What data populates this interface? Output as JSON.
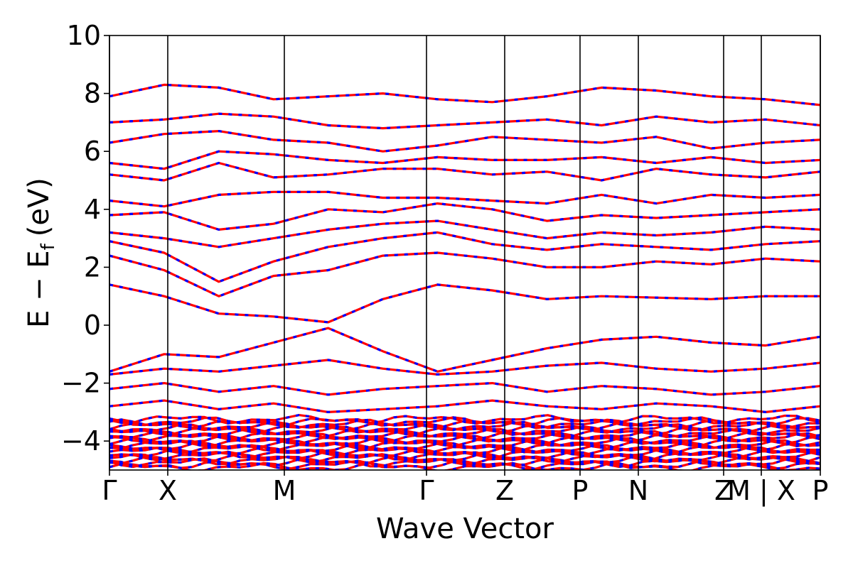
{
  "chart_data": {
    "type": "line",
    "title": "",
    "xlabel": "Wave Vector",
    "ylabel": "E − E",
    "ylabel_subscript": "f",
    "ylabel_unit": "(eV)",
    "ylim": [
      -5,
      10
    ],
    "yticks": [
      -4,
      -2,
      0,
      2,
      4,
      6,
      8,
      10
    ],
    "ytick_labels": [
      "−4",
      "−2",
      "0",
      "2",
      "4",
      "6",
      "8",
      "10"
    ],
    "x_range": [
      0,
      1
    ],
    "high_symmetry_points": [
      {
        "label": "Γ",
        "x": 0.0
      },
      {
        "label": "X",
        "x": 0.082
      },
      {
        "label": "M",
        "x": 0.246
      },
      {
        "label": "Γ",
        "x": 0.446
      },
      {
        "label": "Z",
        "x": 0.556
      },
      {
        "label": "P",
        "x": 0.662
      },
      {
        "label": "N",
        "x": 0.744
      },
      {
        "label": "Z",
        "x": 0.864
      },
      {
        "label": "M | X",
        "x": 0.917
      },
      {
        "label": "P",
        "x": 1.0
      }
    ],
    "grid": false,
    "legend": "none",
    "series": [
      {
        "style": "solid",
        "color": "#ff0000",
        "bands": "all"
      },
      {
        "style": "dashed",
        "color": "#0000ff",
        "bands": "all"
      }
    ],
    "bands": [
      {
        "y": [
          1.4,
          1.0,
          0.4,
          0.3,
          0.1,
          0.9,
          1.4,
          1.2,
          0.9,
          1.0,
          0.95,
          0.9,
          1.0,
          1.0
        ]
      },
      {
        "y": [
          2.4,
          1.9,
          1.0,
          1.7,
          1.9,
          2.4,
          2.5,
          2.3,
          2.0,
          2.0,
          2.2,
          2.1,
          2.3,
          2.2
        ]
      },
      {
        "y": [
          2.9,
          2.5,
          1.5,
          2.2,
          2.7,
          3.0,
          3.2,
          2.8,
          2.6,
          2.8,
          2.7,
          2.6,
          2.8,
          2.9
        ]
      },
      {
        "y": [
          3.2,
          3.0,
          2.7,
          3.0,
          3.3,
          3.5,
          3.6,
          3.3,
          3.0,
          3.2,
          3.1,
          3.2,
          3.4,
          3.3
        ]
      },
      {
        "y": [
          3.8,
          3.9,
          3.3,
          3.5,
          4.0,
          3.9,
          4.2,
          4.0,
          3.6,
          3.8,
          3.7,
          3.8,
          3.9,
          4.0
        ]
      },
      {
        "y": [
          4.3,
          4.1,
          4.5,
          4.6,
          4.6,
          4.4,
          4.4,
          4.3,
          4.2,
          4.5,
          4.2,
          4.5,
          4.4,
          4.5
        ]
      },
      {
        "y": [
          5.2,
          5.0,
          5.6,
          5.1,
          5.2,
          5.4,
          5.4,
          5.2,
          5.3,
          5.0,
          5.4,
          5.2,
          5.1,
          5.3
        ]
      },
      {
        "y": [
          5.6,
          5.4,
          6.0,
          5.9,
          5.7,
          5.6,
          5.8,
          5.7,
          5.7,
          5.8,
          5.6,
          5.8,
          5.6,
          5.7
        ]
      },
      {
        "y": [
          6.3,
          6.6,
          6.7,
          6.4,
          6.3,
          6.0,
          6.2,
          6.5,
          6.4,
          6.3,
          6.5,
          6.1,
          6.3,
          6.4
        ]
      },
      {
        "y": [
          7.0,
          7.1,
          7.3,
          7.2,
          6.9,
          6.8,
          6.9,
          7.0,
          7.1,
          6.9,
          7.2,
          7.0,
          7.1,
          6.9
        ]
      },
      {
        "y": [
          7.9,
          8.3,
          8.2,
          7.8,
          7.9,
          8.0,
          7.8,
          7.7,
          7.9,
          8.2,
          8.1,
          7.9,
          7.8,
          7.6
        ]
      },
      {
        "y": [
          -1.6,
          -1.0,
          -1.1,
          -0.6,
          -0.1,
          -0.9,
          -1.6,
          -1.2,
          -0.8,
          -0.5,
          -0.4,
          -0.6,
          -0.7,
          -0.4
        ]
      },
      {
        "y": [
          -1.7,
          -1.5,
          -1.6,
          -1.4,
          -1.2,
          -1.5,
          -1.7,
          -1.6,
          -1.4,
          -1.3,
          -1.5,
          -1.6,
          -1.5,
          -1.3
        ]
      },
      {
        "y": [
          -2.2,
          -2.0,
          -2.3,
          -2.1,
          -2.4,
          -2.2,
          -2.1,
          -2.0,
          -2.3,
          -2.1,
          -2.2,
          -2.4,
          -2.3,
          -2.1
        ]
      },
      {
        "y": [
          -2.8,
          -2.6,
          -2.9,
          -2.7,
          -3.0,
          -2.9,
          -2.8,
          -2.6,
          -2.8,
          -2.9,
          -2.7,
          -2.8,
          -3.0,
          -2.8
        ]
      }
    ],
    "dense_region": {
      "ymin": -5,
      "ymax": -3.2
    }
  }
}
